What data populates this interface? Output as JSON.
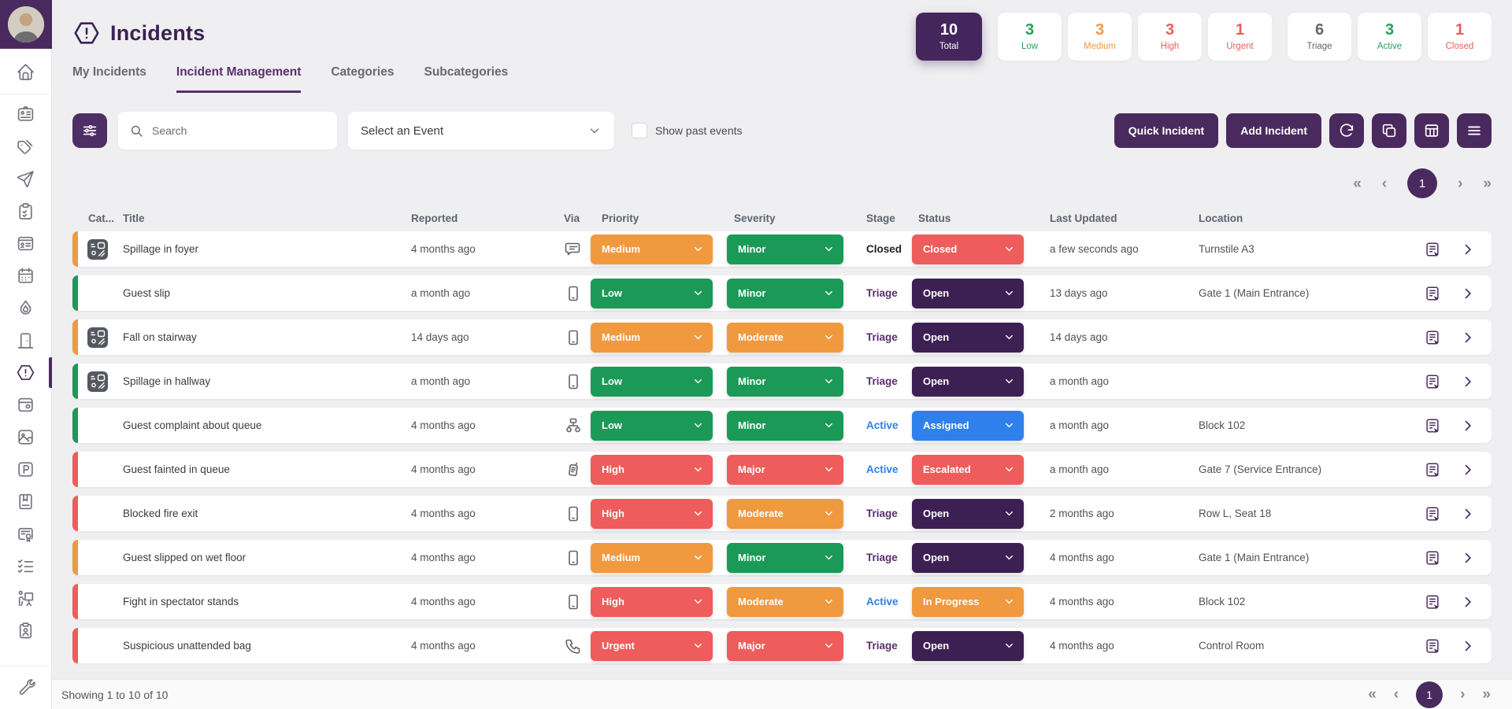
{
  "colors": {
    "green": "#1b9a57",
    "orange": "#f0993f",
    "red": "#ee5c5c",
    "purple": "#3d2053",
    "blue": "#2f80ed",
    "brand": "#4a2a5e",
    "stage_triage": "#5b2d6e",
    "stage_active": "#2f80ed",
    "stage_closed": "#20222a"
  },
  "sidebar": {
    "top": [
      {
        "name": "home",
        "icon": "home-icon"
      }
    ],
    "main": [
      {
        "name": "id-badge",
        "icon": "id-badge-icon"
      },
      {
        "name": "tags",
        "icon": "tags-icon"
      },
      {
        "name": "send",
        "icon": "send-icon"
      },
      {
        "name": "clipboard-check",
        "icon": "clipboard-check-icon"
      },
      {
        "name": "id-card",
        "icon": "id-card-icon"
      },
      {
        "name": "calendar",
        "icon": "calendar-icon"
      },
      {
        "name": "droplet",
        "icon": "droplet-icon"
      },
      {
        "name": "door",
        "icon": "door-icon"
      },
      {
        "name": "incidents",
        "icon": "alert-hexagon-icon",
        "active": true
      },
      {
        "name": "wallet",
        "icon": "wallet-icon"
      },
      {
        "name": "photo",
        "icon": "photo-icon"
      },
      {
        "name": "parking",
        "icon": "parking-icon"
      },
      {
        "name": "book",
        "icon": "book-icon"
      },
      {
        "name": "certificate",
        "icon": "certificate-icon"
      },
      {
        "name": "checklist",
        "icon": "checklist-icon"
      },
      {
        "name": "presentation",
        "icon": "presentation-icon"
      },
      {
        "name": "clipboard-user",
        "icon": "clipboard-user-icon"
      }
    ],
    "bottom": [
      {
        "name": "wrench",
        "icon": "wrench-icon"
      }
    ]
  },
  "header": {
    "title": "Incidents",
    "tabs": [
      {
        "label": "My Incidents",
        "active": false
      },
      {
        "label": "Incident Management",
        "active": true
      },
      {
        "label": "Categories",
        "active": false
      },
      {
        "label": "Subcategories",
        "active": false
      }
    ],
    "stats": [
      {
        "value": "10",
        "label": "Total",
        "style": "dark",
        "bg": "#44265c",
        "color": "#ffffff"
      },
      {
        "value": "3",
        "label": "Low",
        "color": "#28a05a",
        "gap_before": true
      },
      {
        "value": "3",
        "label": "Medium",
        "color": "#f0993f"
      },
      {
        "value": "3",
        "label": "High",
        "color": "#ee5c5c"
      },
      {
        "value": "1",
        "label": "Urgent",
        "color": "#ee5c5c"
      },
      {
        "value": "6",
        "label": "Triage",
        "color": "#63666d",
        "gap_before": true
      },
      {
        "value": "3",
        "label": "Active",
        "color": "#28a05a"
      },
      {
        "value": "1",
        "label": "Closed",
        "color": "#ee5c5c"
      }
    ]
  },
  "toolbar": {
    "search_placeholder": "Search",
    "event_select_value": "Select an Event",
    "show_past_events_label": "Show past events",
    "quick_incident_label": "Quick Incident",
    "add_incident_label": "Add Incident"
  },
  "pagination": {
    "first": "«",
    "prev": "‹",
    "page": "1",
    "next": "›",
    "last": "»"
  },
  "table": {
    "columns": [
      "Cat...",
      "Title",
      "Reported",
      "Via",
      "Priority",
      "Severity",
      "Stage",
      "Status",
      "Last Updated",
      "Location"
    ],
    "rows": [
      {
        "stripe": "orange",
        "has_media": true,
        "title": "Spillage in foyer",
        "reported": "4 months ago",
        "via": "message-icon",
        "priority": {
          "label": "Medium",
          "color": "orange"
        },
        "severity": {
          "label": "Minor",
          "color": "green"
        },
        "stage": {
          "label": "Closed",
          "color": "stage_closed"
        },
        "status": {
          "label": "Closed",
          "color": "red"
        },
        "updated": "a few seconds ago",
        "location": "Turnstile A3"
      },
      {
        "stripe": "green",
        "has_media": false,
        "title": "Guest slip",
        "reported": "a month ago",
        "via": "mobile-icon",
        "priority": {
          "label": "Low",
          "color": "green"
        },
        "severity": {
          "label": "Minor",
          "color": "green"
        },
        "stage": {
          "label": "Triage",
          "color": "stage_triage"
        },
        "status": {
          "label": "Open",
          "color": "purple"
        },
        "updated": "13 days ago",
        "location": "Gate 1 (Main Entrance)"
      },
      {
        "stripe": "orange",
        "has_media": true,
        "title": "Fall on stairway",
        "reported": "14 days ago",
        "via": "mobile-icon",
        "priority": {
          "label": "Medium",
          "color": "orange"
        },
        "severity": {
          "label": "Moderate",
          "color": "orange"
        },
        "stage": {
          "label": "Triage",
          "color": "stage_triage"
        },
        "status": {
          "label": "Open",
          "color": "purple"
        },
        "updated": "14 days ago",
        "location": ""
      },
      {
        "stripe": "green",
        "has_media": true,
        "title": "Spillage in hallway",
        "reported": "a month ago",
        "via": "mobile-icon",
        "priority": {
          "label": "Low",
          "color": "green"
        },
        "severity": {
          "label": "Minor",
          "color": "green"
        },
        "stage": {
          "label": "Triage",
          "color": "stage_triage"
        },
        "status": {
          "label": "Open",
          "color": "purple"
        },
        "updated": "a month ago",
        "location": ""
      },
      {
        "stripe": "green",
        "has_media": false,
        "title": "Guest complaint about queue",
        "reported": "4 months ago",
        "via": "sitemap-icon",
        "priority": {
          "label": "Low",
          "color": "green"
        },
        "severity": {
          "label": "Minor",
          "color": "green"
        },
        "stage": {
          "label": "Active",
          "color": "stage_active"
        },
        "status": {
          "label": "Assigned",
          "color": "blue"
        },
        "updated": "a month ago",
        "location": "Block 102"
      },
      {
        "stripe": "red",
        "has_media": false,
        "title": "Guest fainted in queue",
        "reported": "4 months ago",
        "via": "walkie-talkie-icon",
        "priority": {
          "label": "High",
          "color": "red"
        },
        "severity": {
          "label": "Major",
          "color": "red"
        },
        "stage": {
          "label": "Active",
          "color": "stage_active"
        },
        "status": {
          "label": "Escalated",
          "color": "red"
        },
        "updated": "a month ago",
        "location": "Gate 7 (Service Entrance)"
      },
      {
        "stripe": "red",
        "has_media": false,
        "title": "Blocked fire exit",
        "reported": "4 months ago",
        "via": "mobile-icon",
        "priority": {
          "label": "High",
          "color": "red"
        },
        "severity": {
          "label": "Moderate",
          "color": "orange"
        },
        "stage": {
          "label": "Triage",
          "color": "stage_triage"
        },
        "status": {
          "label": "Open",
          "color": "purple"
        },
        "updated": "2 months ago",
        "location": "Row L, Seat 18"
      },
      {
        "stripe": "orange",
        "has_media": false,
        "title": "Guest slipped on wet floor",
        "reported": "4 months ago",
        "via": "mobile-icon",
        "priority": {
          "label": "Medium",
          "color": "orange"
        },
        "severity": {
          "label": "Minor",
          "color": "green"
        },
        "stage": {
          "label": "Triage",
          "color": "stage_triage"
        },
        "status": {
          "label": "Open",
          "color": "purple"
        },
        "updated": "4 months ago",
        "location": "Gate 1 (Main Entrance)"
      },
      {
        "stripe": "red",
        "has_media": false,
        "title": "Fight in spectator stands",
        "reported": "4 months ago",
        "via": "mobile-icon",
        "priority": {
          "label": "High",
          "color": "red"
        },
        "severity": {
          "label": "Moderate",
          "color": "orange"
        },
        "stage": {
          "label": "Active",
          "color": "stage_active"
        },
        "status": {
          "label": "In Progress",
          "color": "orange"
        },
        "updated": "4 months ago",
        "location": "Block 102"
      },
      {
        "stripe": "red",
        "has_media": false,
        "title": "Suspicious unattended bag",
        "reported": "4 months ago",
        "via": "phone-icon",
        "priority": {
          "label": "Urgent",
          "color": "red"
        },
        "severity": {
          "label": "Major",
          "color": "red"
        },
        "stage": {
          "label": "Triage",
          "color": "stage_triage"
        },
        "status": {
          "label": "Open",
          "color": "purple"
        },
        "updated": "4 months ago",
        "location": "Control Room"
      }
    ]
  },
  "footer": {
    "showing": "Showing 1 to 10 of 10"
  }
}
